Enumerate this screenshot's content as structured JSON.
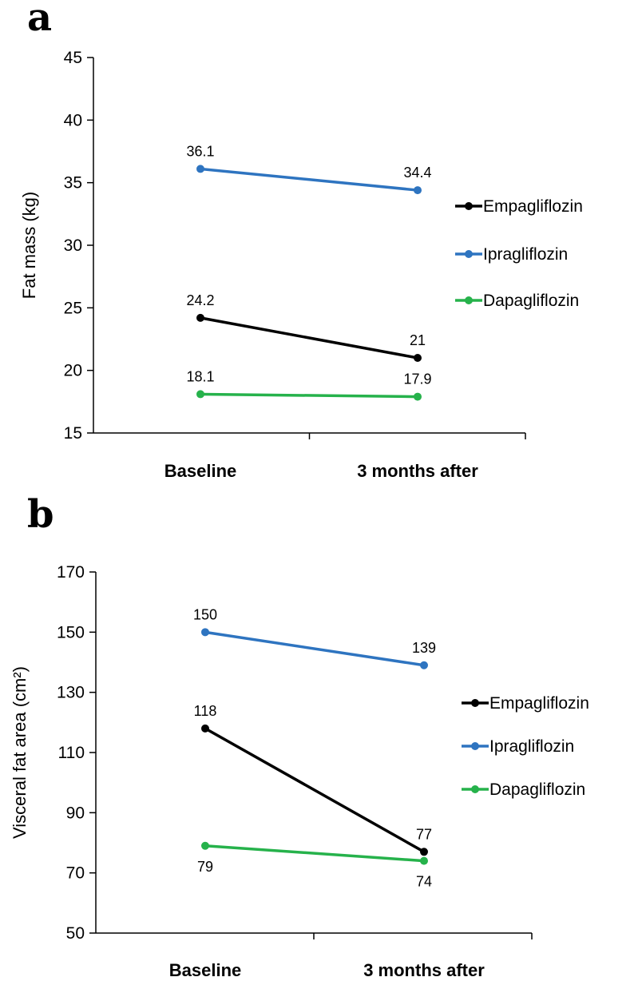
{
  "chart_data": [
    {
      "panel": "a",
      "type": "line",
      "categories": [
        "Baseline",
        "3 months after"
      ],
      "ylabel": "Fat mass (kg)",
      "ylim": [
        15,
        45
      ],
      "yticks": [
        15,
        20,
        25,
        30,
        35,
        40,
        45
      ],
      "legend_position": "right",
      "grid": false,
      "series": [
        {
          "name": "Empagliflozin",
          "color": "#000000",
          "values": [
            24.2,
            21
          ],
          "labels": [
            "24.2",
            "21"
          ],
          "label_side": [
            "above",
            "above"
          ]
        },
        {
          "name": "Ipragliflozin",
          "color": "#2e74c0",
          "values": [
            36.1,
            34.4
          ],
          "labels": [
            "36.1",
            "34.4"
          ],
          "label_side": [
            "above",
            "above"
          ]
        },
        {
          "name": "Dapagliflozin",
          "color": "#26b24b",
          "values": [
            18.1,
            17.9
          ],
          "labels": [
            "18.1",
            "17.9"
          ],
          "label_side": [
            "above",
            "above"
          ]
        }
      ]
    },
    {
      "panel": "b",
      "type": "line",
      "categories": [
        "Baseline",
        "3 months after"
      ],
      "ylabel": "Visceral fat area (cm²)",
      "ylim": [
        50,
        170
      ],
      "yticks": [
        50,
        70,
        90,
        110,
        130,
        150,
        170
      ],
      "legend_position": "right",
      "grid": false,
      "series": [
        {
          "name": "Empagliflozin",
          "color": "#000000",
          "values": [
            118,
            77
          ],
          "labels": [
            "118",
            "77"
          ],
          "label_side": [
            "above",
            "above"
          ]
        },
        {
          "name": "Ipragliflozin",
          "color": "#2e74c0",
          "values": [
            150,
            139
          ],
          "labels": [
            "150",
            "139"
          ],
          "label_side": [
            "above",
            "above"
          ]
        },
        {
          "name": "Dapagliflozin",
          "color": "#26b24b",
          "values": [
            79,
            74
          ],
          "labels": [
            "79",
            "74"
          ],
          "label_side": [
            "below",
            "below"
          ]
        }
      ]
    }
  ]
}
